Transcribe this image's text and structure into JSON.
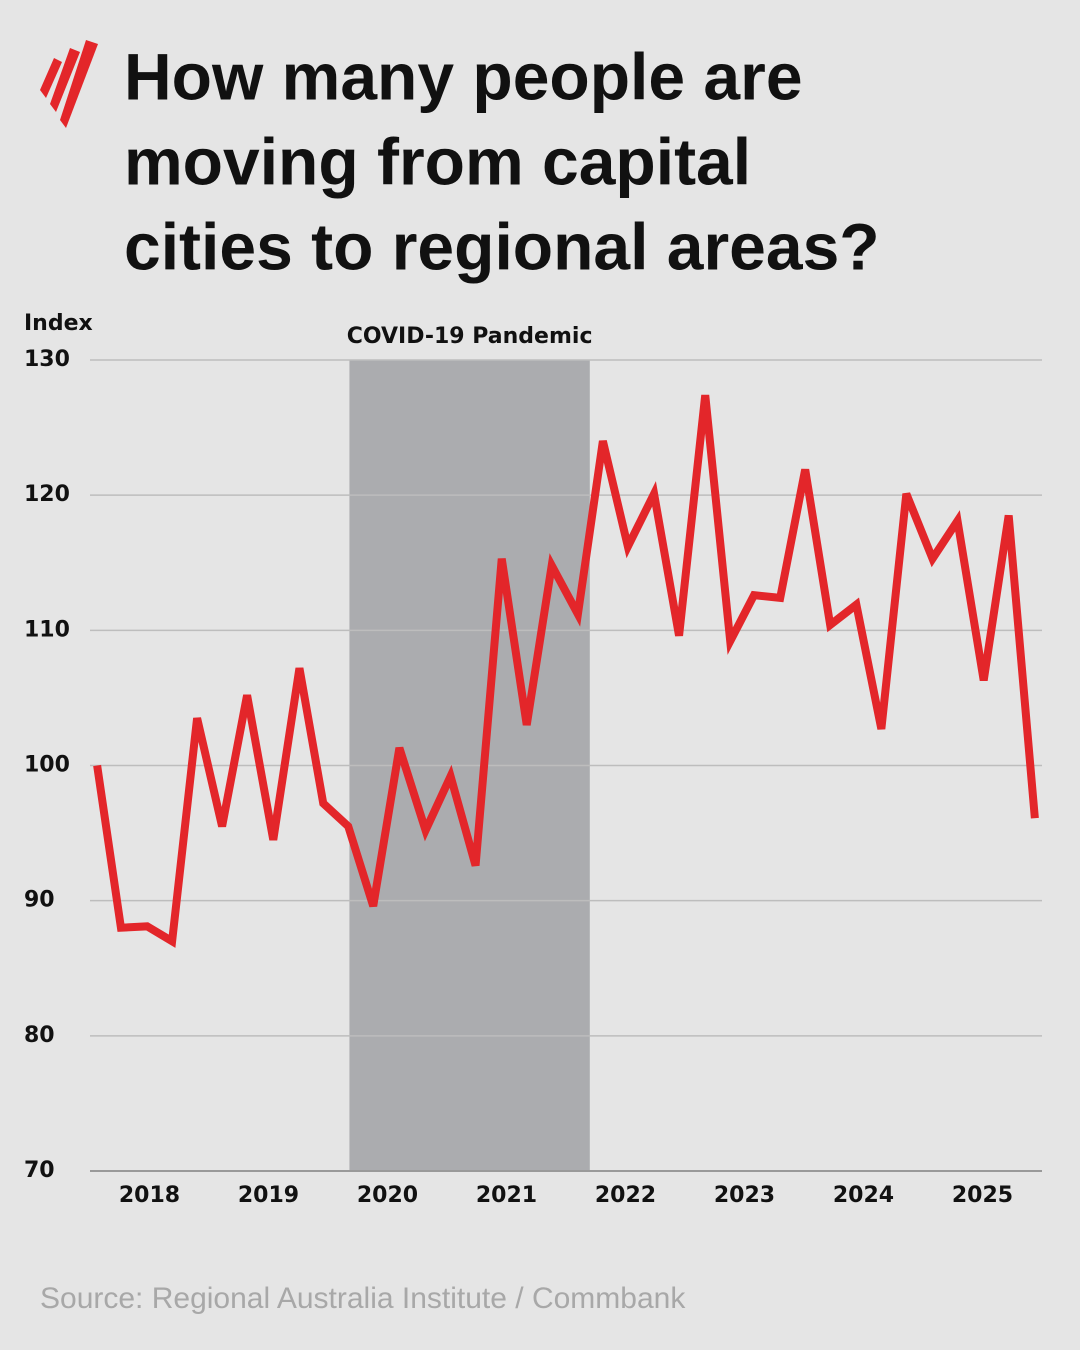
{
  "chart_data": {
    "type": "line",
    "title": [
      "How many people are",
      "moving from capital",
      "cities to regional areas?"
    ],
    "y_label": "Index",
    "source": "Source: Regional Australia Institute / Commbank",
    "shaded_span": {
      "label": "COVID-19 Pandemic",
      "x": [
        2019.68,
        2021.7
      ],
      "color": "#abacaf"
    },
    "x": [
      2017.56,
      2017.76,
      2017.98,
      2018.19,
      2018.4,
      2018.61,
      2018.82,
      2019.04,
      2019.26,
      2019.46,
      2019.67,
      2019.88,
      2020.1,
      2020.32,
      2020.53,
      2020.74,
      2020.96,
      2021.17,
      2021.38,
      2021.6,
      2021.81,
      2022.02,
      2022.24,
      2022.45,
      2022.67,
      2022.88,
      2023.08,
      2023.3,
      2023.51,
      2023.72,
      2023.94,
      2024.15,
      2024.36,
      2024.58,
      2024.79,
      2025.01,
      2025.22,
      2025.44
    ],
    "series": [
      {
        "name": "Index",
        "color": "#e3262a",
        "values": [
          100,
          88,
          88.1,
          87,
          103.5,
          95.5,
          105.2,
          94.5,
          107.2,
          97.2,
          95.5,
          89.6,
          101.3,
          95.2,
          99.2,
          92.6,
          115.3,
          103,
          114.8,
          111.2,
          124,
          116.2,
          120.1,
          109.6,
          127.4,
          109.2,
          112.6,
          112.4,
          121.9,
          110.4,
          111.9,
          102.7,
          120.1,
          115.3,
          118.1,
          106.3,
          118.5,
          96.1
        ]
      }
    ],
    "xlim": [
      2017.5,
      2025.5
    ],
    "xticks": [
      2018,
      2019,
      2020,
      2021,
      2022,
      2023,
      2024,
      2025
    ],
    "ylim": [
      70,
      130
    ],
    "yticks": [
      70,
      80,
      90,
      100,
      110,
      120,
      130
    ],
    "grid": true
  }
}
